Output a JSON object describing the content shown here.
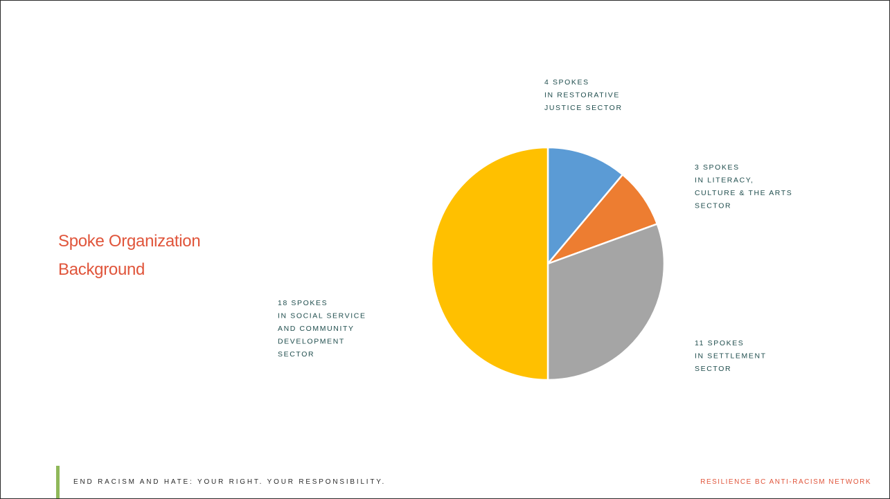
{
  "slide": {
    "title_line1": "Spoke Organization",
    "title_line2": "Background"
  },
  "footer": {
    "left": "END RACISM AND HATE: YOUR RIGHT. YOUR RESPONSIBILITY.",
    "right": "RESILIENCE BC ANTI-RACISM NETWORK"
  },
  "colors": {
    "title": "#e0553b",
    "label": "#1f4d4d",
    "footer_accent": "#8fb85a",
    "footer_right": "#e0553b"
  },
  "chart_data": {
    "type": "pie",
    "start_angle_deg": 0,
    "direction": "clockwise",
    "slices": [
      {
        "key": "restorative",
        "value": 4,
        "color": "#5b9bd5",
        "label_lines": [
          "4 SPOKES",
          "IN RESTORATIVE",
          "JUSTICE SECTOR"
        ]
      },
      {
        "key": "literacy",
        "value": 3,
        "color": "#ed7d31",
        "label_lines": [
          "3 SPOKES",
          "IN LITERACY,",
          "CULTURE & THE ARTS",
          "SECTOR"
        ]
      },
      {
        "key": "settlement",
        "value": 11,
        "color": "#a5a5a5",
        "label_lines": [
          "11 SPOKES",
          "IN SETTLEMENT",
          "SECTOR"
        ]
      },
      {
        "key": "social",
        "value": 18,
        "color": "#ffc000",
        "label_lines": [
          "18 SPOKES",
          "IN SOCIAL SERVICE",
          "AND COMMUNITY",
          "DEVELOPMENT",
          "SECTOR"
        ]
      }
    ]
  }
}
